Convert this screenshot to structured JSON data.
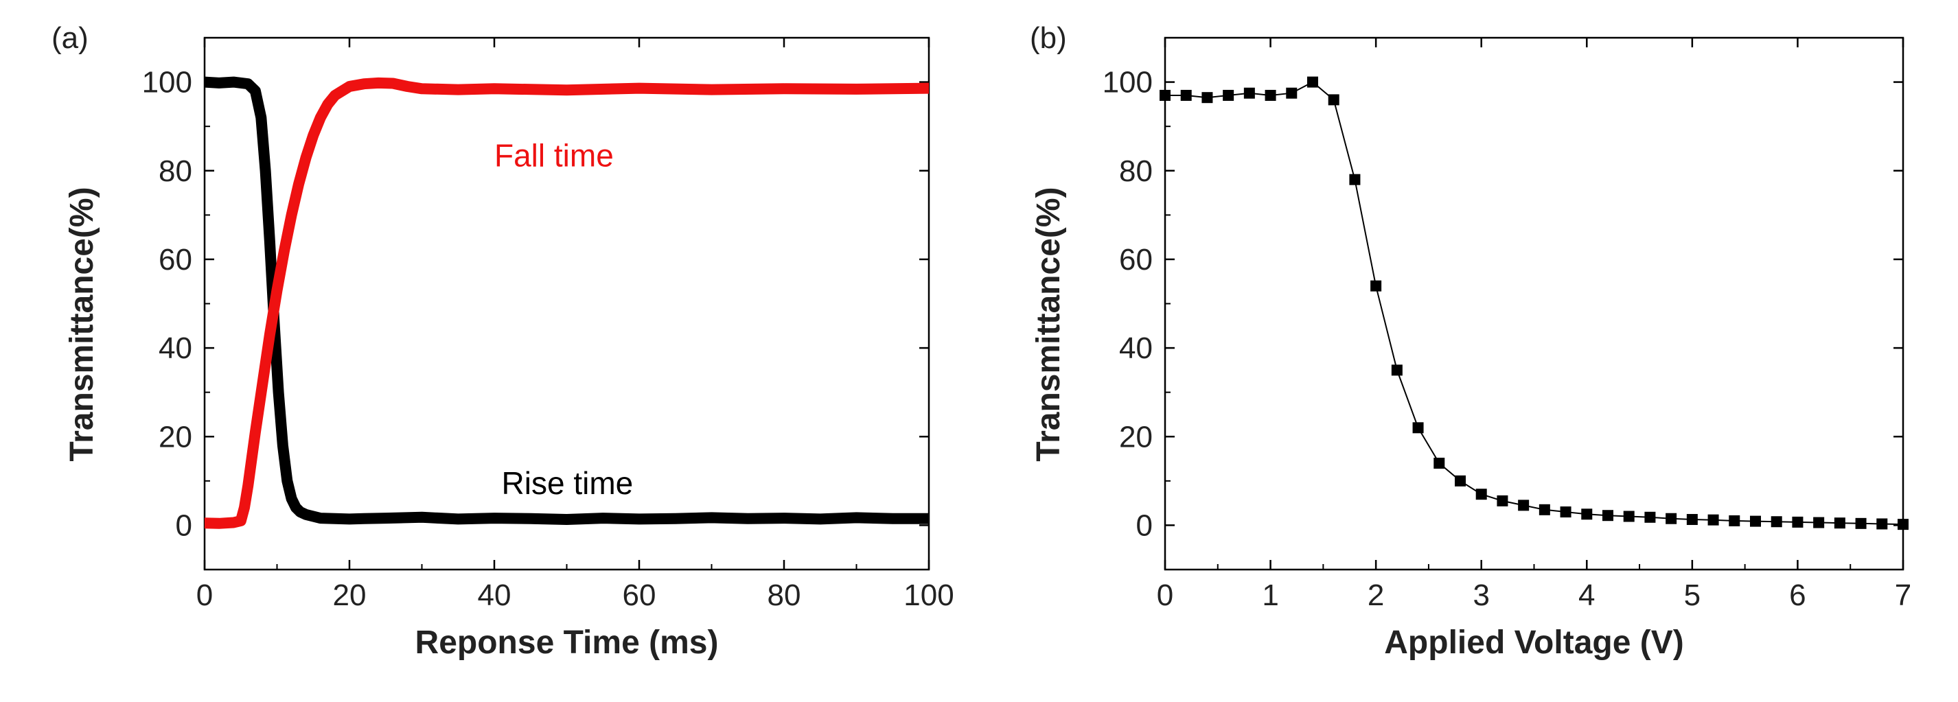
{
  "colors": {
    "black": "#000000",
    "red": "#ee1111"
  },
  "chart_data": [
    {
      "panel_label": "(a)",
      "type": "line",
      "xlabel": "Reponse Time (ms)",
      "ylabel": "Transmittance(%)",
      "xlim": [
        0,
        100
      ],
      "ylim": [
        -10,
        110
      ],
      "xticks": [
        0,
        20,
        40,
        60,
        80,
        100
      ],
      "yticks": [
        0,
        20,
        40,
        60,
        80,
        100
      ],
      "grid": false,
      "series": [
        {
          "color": "#000000",
          "x": [
            0,
            2,
            4,
            6,
            7,
            7.8,
            8.4,
            9,
            9.6,
            10.2,
            10.8,
            11.4,
            12,
            12.6,
            13.2,
            14,
            15,
            16,
            18,
            20,
            22,
            25,
            30,
            35,
            40,
            45,
            50,
            55,
            60,
            65,
            70,
            75,
            80,
            85,
            90,
            95,
            100
          ],
          "y": [
            100,
            99.8,
            100,
            99.6,
            98,
            92,
            80,
            64,
            46,
            30,
            18,
            10,
            6,
            4,
            3,
            2.4,
            2,
            1.6,
            1.5,
            1.4,
            1.5,
            1.6,
            1.8,
            1.4,
            1.6,
            1.5,
            1.3,
            1.6,
            1.4,
            1.5,
            1.7,
            1.5,
            1.6,
            1.4,
            1.7,
            1.5,
            1.5
          ]
        },
        {
          "color": "#ee1111",
          "x": [
            0,
            2,
            4,
            5,
            5.5,
            6,
            6.5,
            7,
            8,
            9,
            10,
            11,
            12,
            13,
            14,
            15,
            16,
            17,
            18,
            20,
            22,
            24,
            26,
            28,
            30,
            35,
            40,
            50,
            60,
            70,
            80,
            90,
            100
          ],
          "y": [
            0.5,
            0.4,
            0.6,
            1,
            4,
            9,
            15,
            21,
            32,
            43,
            53,
            62,
            70,
            77,
            83,
            88,
            92,
            95,
            97,
            99,
            99.6,
            99.8,
            99.7,
            99,
            98.5,
            98.3,
            98.5,
            98.2,
            98.6,
            98.3,
            98.5,
            98.4,
            98.6
          ]
        }
      ],
      "annotations": [
        {
          "text": "Fall time",
          "x": 40,
          "y": 81,
          "color": "#ee1111"
        },
        {
          "text": "Rise time",
          "x": 41,
          "y": 7,
          "color": "#000000"
        }
      ]
    },
    {
      "panel_label": "(b)",
      "type": "line",
      "xlabel": "Applied Voltage (V)",
      "ylabel": "Transmittance(%)",
      "xlim": [
        0,
        7
      ],
      "ylim": [
        -10,
        110
      ],
      "xticks": [
        0,
        1,
        2,
        3,
        4,
        5,
        6,
        7
      ],
      "yticks": [
        0,
        20,
        40,
        60,
        80,
        100
      ],
      "grid": false,
      "series": [
        {
          "color": "#000000",
          "marker": "square",
          "x": [
            0,
            0.2,
            0.4,
            0.6,
            0.8,
            1.0,
            1.2,
            1.4,
            1.6,
            1.8,
            2.0,
            2.2,
            2.4,
            2.6,
            2.8,
            3.0,
            3.2,
            3.4,
            3.6,
            3.8,
            4.0,
            4.2,
            4.4,
            4.6,
            4.8,
            5.0,
            5.2,
            5.4,
            5.6,
            5.8,
            6.0,
            6.2,
            6.4,
            6.6,
            6.8,
            7.0
          ],
          "y": [
            97,
            97,
            96.5,
            97,
            97.5,
            97,
            97.5,
            100,
            96,
            78,
            54,
            35,
            22,
            14,
            10,
            7,
            5.5,
            4.5,
            3.5,
            3,
            2.5,
            2.2,
            2,
            1.8,
            1.5,
            1.3,
            1.2,
            1,
            0.9,
            0.8,
            0.7,
            0.6,
            0.5,
            0.4,
            0.3,
            0.2
          ]
        }
      ],
      "annotations": []
    }
  ]
}
